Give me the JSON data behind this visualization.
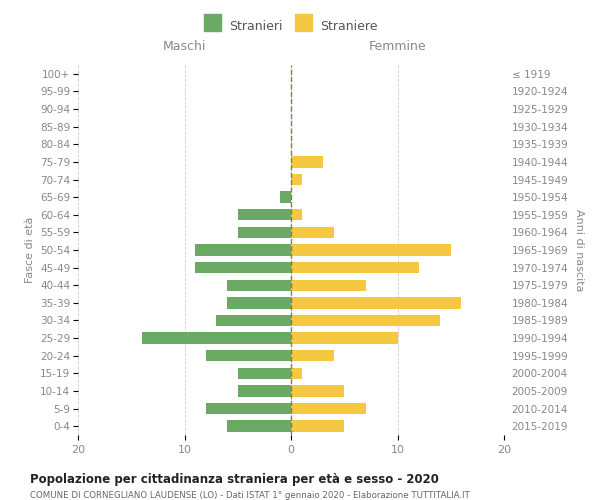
{
  "age_groups": [
    "0-4",
    "5-9",
    "10-14",
    "15-19",
    "20-24",
    "25-29",
    "30-34",
    "35-39",
    "40-44",
    "45-49",
    "50-54",
    "55-59",
    "60-64",
    "65-69",
    "70-74",
    "75-79",
    "80-84",
    "85-89",
    "90-94",
    "95-99",
    "100+"
  ],
  "birth_years": [
    "2015-2019",
    "2010-2014",
    "2005-2009",
    "2000-2004",
    "1995-1999",
    "1990-1994",
    "1985-1989",
    "1980-1984",
    "1975-1979",
    "1970-1974",
    "1965-1969",
    "1960-1964",
    "1955-1959",
    "1950-1954",
    "1945-1949",
    "1940-1944",
    "1935-1939",
    "1930-1934",
    "1925-1929",
    "1920-1924",
    "≤ 1919"
  ],
  "males": [
    6,
    8,
    5,
    5,
    8,
    14,
    7,
    6,
    6,
    9,
    9,
    5,
    5,
    1,
    0,
    0,
    0,
    0,
    0,
    0,
    0
  ],
  "females": [
    5,
    7,
    5,
    1,
    4,
    10,
    14,
    16,
    7,
    12,
    15,
    4,
    1,
    0,
    1,
    3,
    0,
    0,
    0,
    0,
    0
  ],
  "male_color": "#6aaa64",
  "female_color": "#f5c842",
  "male_label": "Stranieri",
  "female_label": "Straniere",
  "title": "Popolazione per cittadinanza straniera per età e sesso - 2020",
  "subtitle": "COMUNE DI CORNEGLIANO LAUDENSE (LO) - Dati ISTAT 1° gennaio 2020 - Elaborazione TUTTITALIA.IT",
  "xlabel_left": "Maschi",
  "xlabel_right": "Femmine",
  "ylabel_left": "Fasce di età",
  "ylabel_right": "Anni di nascita",
  "xlim": 20,
  "background_color": "#ffffff"
}
